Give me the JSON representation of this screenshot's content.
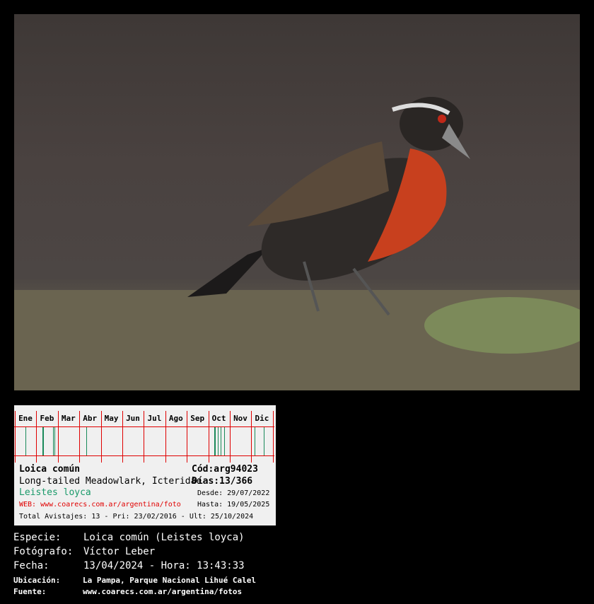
{
  "photo": {
    "subject": "Loica común bird on ground"
  },
  "card": {
    "months": [
      "Ene",
      "Feb",
      "Mar",
      "Abr",
      "May",
      "Jun",
      "Jul",
      "Ago",
      "Sep",
      "Oct",
      "Nov",
      "Dic"
    ],
    "sighting_ticks_day_of_year": [
      15,
      39,
      40,
      54,
      56,
      101,
      283,
      284,
      288,
      292,
      297,
      340,
      353
    ],
    "name": "Loica común",
    "code": "Cód:arg94023",
    "english": "Long-tailed Meadowlark, Icteridae",
    "days": "Días:13/366",
    "scientific": "Leistes loyca",
    "web": "WEB: www.coarecs.com.ar/argentina/foto",
    "desde": "Desde: 29/07/2022",
    "hasta": "Hasta: 19/05/2025",
    "total": "Total Avistajes: 13 - Pri: 23/02/2016 - Ult: 25/10/2024",
    "colors": {
      "grid": "#e00000",
      "tick": "#1a8a5a",
      "scientific": "#1a9a6a",
      "web": "#e00000"
    }
  },
  "info": {
    "especie_label": "Especie:",
    "especie": "Loica común (Leistes loyca)",
    "fotografo_label": "Fotógrafo:",
    "fotografo": "Víctor Leber",
    "fecha_label": "Fecha:",
    "fecha": "13/04/2024 - Hora: 13:43:33",
    "ubicacion_label": "Ubicación:",
    "ubicacion": "La Pampa, Parque Nacional Lihué Calel",
    "fuente_label": "Fuente:",
    "fuente": "www.coarecs.com.ar/argentina/fotos"
  }
}
